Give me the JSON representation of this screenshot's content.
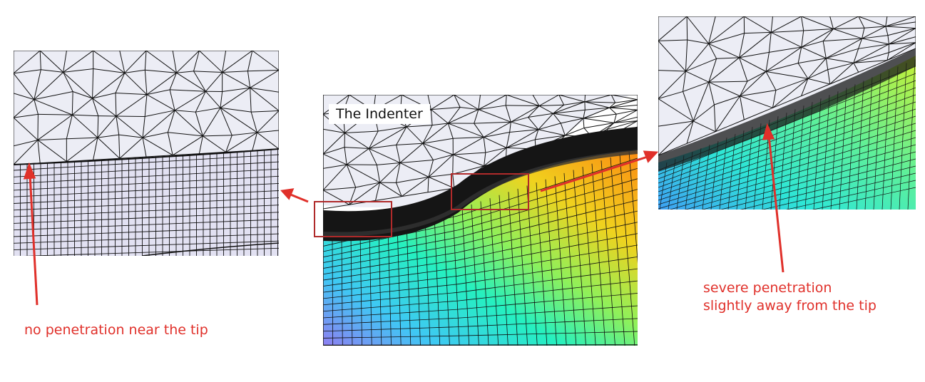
{
  "center": {
    "indenter_label": "The Indenter"
  },
  "annotations": {
    "left_caption": "no penetration near the tip",
    "right_caption_line1": "severe penetration",
    "right_caption_line2": "slightly away from the tip"
  },
  "colors": {
    "indenter_fill": "#ecedf5",
    "mesh_line": "#111111",
    "annotation_red": "#e0302a",
    "box_red": "#b02a2a",
    "colormap": [
      "#8f7ff2",
      "#3fc8f4",
      "#25f0c0",
      "#8ff05a",
      "#f0d21e",
      "#fb8a12"
    ]
  }
}
